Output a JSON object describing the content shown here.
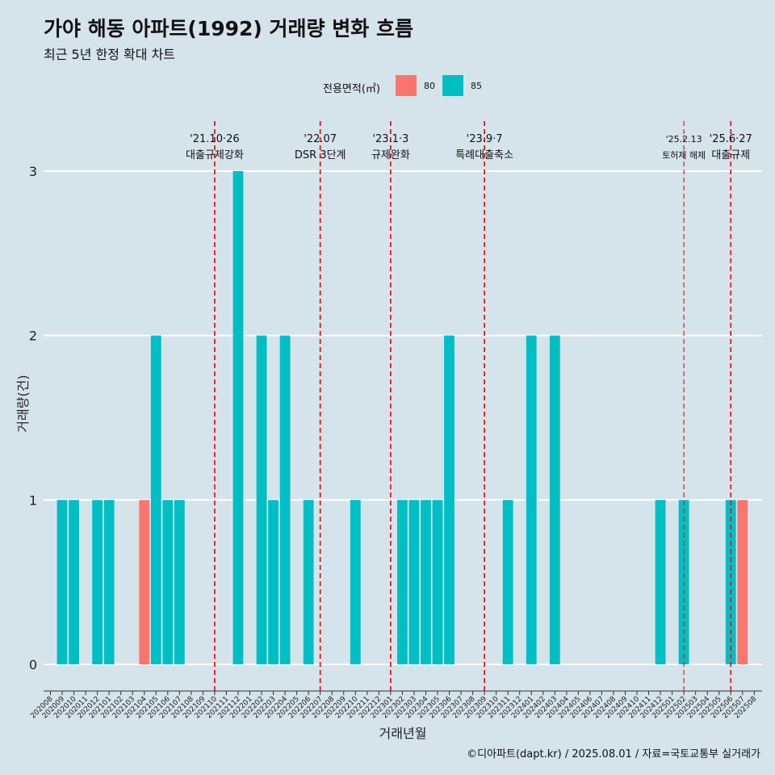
{
  "header": {
    "title": "가야 해동 아파트(1992) 거래량 변화 흐름",
    "subtitle": "최근 5년 한정 확대 차트"
  },
  "legend": {
    "title": "전용면적(㎡)",
    "items": [
      {
        "label": "80",
        "color": "#f8766d"
      },
      {
        "label": "85",
        "color": "#00bfc4"
      }
    ]
  },
  "caption": "©디아파트(dapt.kr) / 2025.08.01 / 자료=국토교통부 실거래가",
  "chart_data": {
    "type": "bar",
    "xlabel": "거래년월",
    "ylabel": "거래량(건)",
    "ylim": [
      0,
      3
    ],
    "yticks": [
      0,
      1,
      2,
      3
    ],
    "grid": true,
    "legend_position": "top",
    "categories": [
      "202008",
      "202009",
      "202010",
      "202011",
      "202012",
      "202101",
      "202102",
      "202103",
      "202104",
      "202105",
      "202106",
      "202107",
      "202108",
      "202109",
      "202110",
      "202111",
      "202112",
      "202201",
      "202202",
      "202203",
      "202204",
      "202205",
      "202206",
      "202207",
      "202208",
      "202209",
      "202210",
      "202211",
      "202212",
      "202301",
      "202302",
      "202303",
      "202304",
      "202305",
      "202306",
      "202307",
      "202308",
      "202309",
      "202310",
      "202311",
      "202312",
      "202401",
      "202402",
      "202403",
      "202404",
      "202405",
      "202406",
      "202407",
      "202408",
      "202409",
      "202410",
      "202411",
      "202412",
      "202501",
      "202502",
      "202503",
      "202504",
      "202505",
      "202506",
      "202507",
      "202508"
    ],
    "series": [
      {
        "name": "80",
        "color": "#f8766d",
        "values": [
          0,
          0,
          0,
          0,
          0,
          0,
          0,
          0,
          1,
          0,
          0,
          0,
          0,
          0,
          0,
          0,
          0,
          0,
          0,
          0,
          0,
          0,
          0,
          0,
          0,
          0,
          0,
          0,
          0,
          0,
          0,
          0,
          0,
          0,
          0,
          0,
          0,
          0,
          0,
          0,
          0,
          0,
          0,
          0,
          0,
          0,
          0,
          0,
          0,
          0,
          0,
          0,
          0,
          0,
          0,
          0,
          0,
          0,
          0,
          1,
          0
        ]
      },
      {
        "name": "85",
        "color": "#00bfc4",
        "values": [
          0,
          1,
          1,
          0,
          1,
          1,
          0,
          0,
          0,
          2,
          1,
          1,
          0,
          0,
          0,
          0,
          3,
          0,
          2,
          1,
          2,
          0,
          1,
          0,
          0,
          0,
          1,
          0,
          0,
          0,
          1,
          1,
          1,
          1,
          2,
          0,
          0,
          0,
          0,
          1,
          0,
          2,
          0,
          2,
          0,
          0,
          0,
          0,
          0,
          0,
          0,
          0,
          1,
          0,
          1,
          0,
          0,
          0,
          1,
          0,
          0
        ]
      }
    ],
    "annotations": [
      {
        "label1": "'21.10·26",
        "label2": "대출규제강화",
        "x": "202110",
        "major": true
      },
      {
        "label1": "'22.07",
        "label2": "DSR 3단계",
        "x": "202207",
        "major": true
      },
      {
        "label1": "'23.1·3",
        "label2": "규제완화",
        "x": "202301",
        "major": true
      },
      {
        "label1": "'23.9·7",
        "label2": "특례대출축소",
        "x": "202309",
        "major": true
      },
      {
        "label1": "'25.2.13",
        "label2": "토허제 해제",
        "x": "202502",
        "major": false
      },
      {
        "label1": "'25.6·27",
        "label2": "대출규제",
        "x": "202506",
        "major": true
      }
    ]
  }
}
